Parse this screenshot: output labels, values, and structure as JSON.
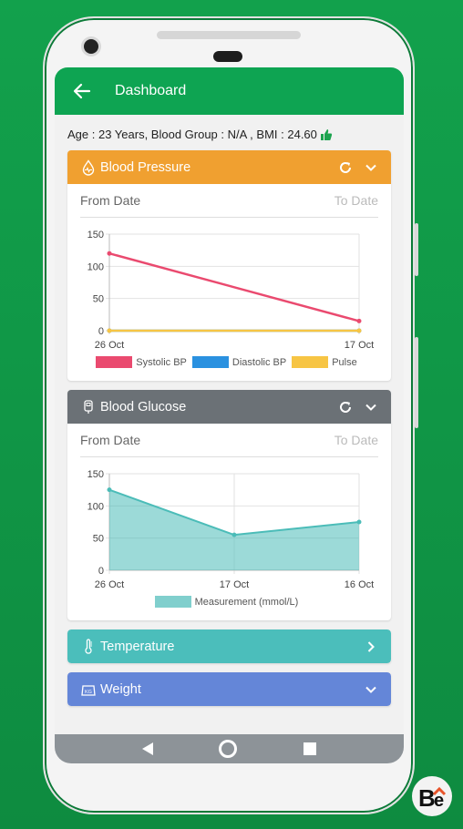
{
  "header": {
    "title": "Dashboard"
  },
  "info": {
    "text": "Age : 23 Years, Blood Group : N/A , BMI : 24.60"
  },
  "bp": {
    "title": "Blood Pressure",
    "from_date": "From Date",
    "to_date": "To Date",
    "color": "#f0a030"
  },
  "glucose": {
    "title": "Blood Glucose",
    "from_date": "From Date",
    "to_date": "To Date",
    "color": "#6b7176"
  },
  "temperature": {
    "title": "Temperature",
    "color": "#4bbebb"
  },
  "weight": {
    "title": "Weight",
    "color": "#6486d8"
  },
  "chart_data": [
    {
      "type": "line",
      "categories": [
        "26 Oct",
        "17 Oct"
      ],
      "ylim": [
        0,
        150
      ],
      "yticks": [
        "150",
        "100",
        "50",
        "0"
      ],
      "series": [
        {
          "name": "Systolic BP",
          "values": [
            120,
            15
          ],
          "color": "#ea4a6f"
        },
        {
          "name": "Diastolic BP",
          "values": [
            0,
            0
          ],
          "color": "#2a91e0"
        },
        {
          "name": "Pulse",
          "values": [
            0,
            0
          ],
          "color": "#f7c544"
        }
      ]
    },
    {
      "type": "area",
      "categories": [
        "26 Oct",
        "17 Oct",
        "16 Oct"
      ],
      "ylim": [
        0,
        150
      ],
      "yticks": [
        "150",
        "100",
        "50",
        "0"
      ],
      "series": [
        {
          "name": "Measurement (mmol/L)",
          "values": [
            125,
            55,
            75
          ],
          "color": "#4bbcb8"
        }
      ]
    }
  ]
}
